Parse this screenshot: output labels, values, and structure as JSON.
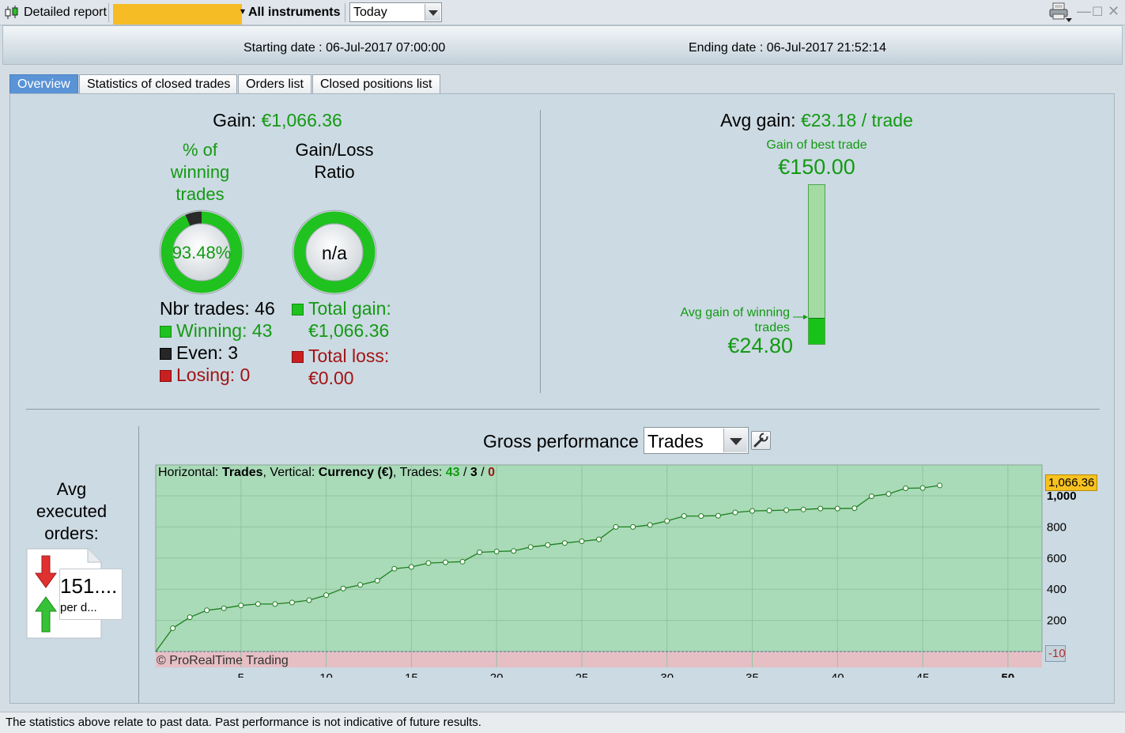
{
  "titlebar": {
    "title": "Detailed report",
    "instrument": "All instruments",
    "period": "Today",
    "colors": {
      "redaction": "#f6bc26"
    }
  },
  "header": {
    "starting_date": "Starting date : 06-Jul-2017 07:00:00",
    "ending_date": "Ending date : 06-Jul-2017 21:52:14"
  },
  "tabs": [
    {
      "label": "Overview",
      "active": true
    },
    {
      "label": "Statistics of closed trades",
      "active": false
    },
    {
      "label": "Orders list",
      "active": false
    },
    {
      "label": "Closed positions list",
      "active": false
    }
  ],
  "overview": {
    "gain_label": "Gain:",
    "gain_value": "€1,066.36",
    "winning_title": [
      "% of",
      "winning",
      "trades"
    ],
    "winning_pct": "93.48%",
    "winning_fraction": 0.9348,
    "gl_title": [
      "Gain/Loss",
      "Ratio"
    ],
    "gl_value": "n/a",
    "nbr_trades": "Nbr trades: 46",
    "winning": "Winning: 43",
    "even": "Even: 3",
    "losing": "Losing: 0",
    "total_gain_label": "Total gain:",
    "total_gain_value": "€1,066.36",
    "total_loss_label": "Total loss:",
    "total_loss_value": "€0.00",
    "avg_gain_label": "Avg gain:",
    "avg_gain_value": "€23.18 / trade",
    "best_trade_label": "Gain of best trade",
    "best_trade_value": "€150.00",
    "avg_win_label_1": "Avg gain of winning",
    "avg_win_label_2": "trades",
    "avg_win_value": "€24.80",
    "avg_win_fraction": 0.1653,
    "avg_orders_title": [
      "Avg",
      "executed",
      "orders:"
    ],
    "avg_orders_value": "151....",
    "avg_orders_unit": "per d...",
    "colors": {
      "gain": "#139a13",
      "loss": "#a11414",
      "even": "#222222"
    }
  },
  "performance": {
    "title": "Gross performance",
    "mode": "Trades",
    "info_prefix": "Horizontal: ",
    "info_h": "Trades",
    "info_mid": ", Vertical: ",
    "info_v": "Currency (€)",
    "info_trades": ", Trades: ",
    "info_win": "43",
    "info_slash": " / ",
    "info_even": "3",
    "info_lose": "0",
    "copyright": "© ProRealTime Trading",
    "last_value_tag": "1,066.36",
    "bottom_tag": "-10"
  },
  "chart_data": {
    "type": "line",
    "xlabel": "",
    "ylabel": "",
    "xlim": [
      0,
      52
    ],
    "ylim": [
      -10,
      1120
    ],
    "x_ticks": [
      "5",
      "10",
      "15",
      "20",
      "25",
      "30",
      "35",
      "40",
      "45",
      "50"
    ],
    "y_ticks": [
      "200",
      "400",
      "600",
      "800",
      "1,000"
    ],
    "series": [
      {
        "x": [
          0,
          1,
          2,
          3,
          4,
          5,
          6,
          7,
          8,
          9,
          10,
          11,
          12,
          13,
          14,
          15,
          16,
          17,
          18,
          19,
          20,
          21,
          22,
          23,
          24,
          25,
          26,
          27,
          28,
          29,
          30,
          31,
          32,
          33,
          34,
          35,
          36,
          37,
          38,
          39,
          40,
          41,
          42,
          43,
          44,
          45,
          46
        ],
        "y": [
          0,
          150,
          220,
          265,
          278,
          296,
          305,
          305,
          315,
          330,
          362,
          405,
          428,
          455,
          532,
          543,
          568,
          573,
          577,
          637,
          642,
          646,
          671,
          684,
          697,
          708,
          720,
          800,
          800,
          813,
          838,
          870,
          870,
          872,
          893,
          903,
          905,
          908,
          912,
          918,
          918,
          920,
          997,
          1012,
          1048,
          1050,
          1066.36
        ]
      }
    ],
    "grid": true
  },
  "status": {
    "text": "The statistics above relate to past data. Past performance is not indicative of future results."
  }
}
